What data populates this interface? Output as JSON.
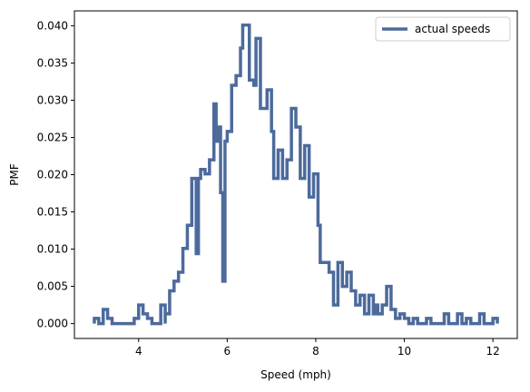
{
  "chart_data": {
    "type": "line",
    "step": true,
    "title": "",
    "xlabel": "Speed (mph)",
    "ylabel": "PMF",
    "xlim": [
      2.55,
      12.55
    ],
    "ylim": [
      -0.002,
      0.042
    ],
    "x_ticks": [
      4,
      6,
      8,
      10,
      12
    ],
    "y_ticks": [
      0.0,
      0.005,
      0.01,
      0.015,
      0.02,
      0.025,
      0.03,
      0.035,
      0.04
    ],
    "x_tick_labels": [
      "4",
      "6",
      "8",
      "10",
      "12"
    ],
    "y_tick_labels": [
      "0.000",
      "0.005",
      "0.010",
      "0.015",
      "0.020",
      "0.025",
      "0.030",
      "0.035",
      "0.040"
    ],
    "grid": false,
    "legend": {
      "placement": "top-right",
      "entries": [
        "actual speeds"
      ]
    },
    "series": [
      {
        "name": "actual speeds",
        "color": "#4c6a9c",
        "points": [
          [
            3.0,
            0.0
          ],
          [
            3.0,
            0.0007
          ],
          [
            3.1,
            0.0007
          ],
          [
            3.1,
            0.0
          ],
          [
            3.2,
            0.0
          ],
          [
            3.2,
            0.0019
          ],
          [
            3.3,
            0.0019
          ],
          [
            3.3,
            0.0007
          ],
          [
            3.4,
            0.0007
          ],
          [
            3.4,
            0.0
          ],
          [
            3.9,
            0.0
          ],
          [
            3.9,
            0.0007
          ],
          [
            4.0,
            0.0007
          ],
          [
            4.0,
            0.0025
          ],
          [
            4.1,
            0.0025
          ],
          [
            4.1,
            0.0013
          ],
          [
            4.2,
            0.0013
          ],
          [
            4.2,
            0.0007
          ],
          [
            4.3,
            0.0007
          ],
          [
            4.3,
            0.0
          ],
          [
            4.5,
            0.0
          ],
          [
            4.5,
            0.0025
          ],
          [
            4.6,
            0.0025
          ],
          [
            4.6,
            0.0
          ],
          [
            4.6,
            0.0013
          ],
          [
            4.7,
            0.0013
          ],
          [
            4.7,
            0.0044
          ],
          [
            4.8,
            0.0044
          ],
          [
            4.8,
            0.0057
          ],
          [
            4.9,
            0.0057
          ],
          [
            4.9,
            0.0069
          ],
          [
            5.0,
            0.0069
          ],
          [
            5.0,
            0.0101
          ],
          [
            5.1,
            0.0101
          ],
          [
            5.1,
            0.0132
          ],
          [
            5.2,
            0.0132
          ],
          [
            5.2,
            0.0195
          ],
          [
            5.3,
            0.0195
          ],
          [
            5.3,
            0.0094
          ],
          [
            5.35,
            0.0094
          ],
          [
            5.35,
            0.0195
          ],
          [
            5.4,
            0.0195
          ],
          [
            5.4,
            0.0207
          ],
          [
            5.5,
            0.0207
          ],
          [
            5.5,
            0.0201
          ],
          [
            5.6,
            0.0201
          ],
          [
            5.6,
            0.022
          ],
          [
            5.7,
            0.022
          ],
          [
            5.7,
            0.0295
          ],
          [
            5.75,
            0.0295
          ],
          [
            5.75,
            0.0245
          ],
          [
            5.8,
            0.0245
          ],
          [
            5.8,
            0.0264
          ],
          [
            5.85,
            0.0264
          ],
          [
            5.85,
            0.0176
          ],
          [
            5.9,
            0.0176
          ],
          [
            5.9,
            0.0057
          ],
          [
            5.95,
            0.0057
          ],
          [
            5.95,
            0.0245
          ],
          [
            6.0,
            0.0245
          ],
          [
            6.0,
            0.0258
          ],
          [
            6.1,
            0.0258
          ],
          [
            6.1,
            0.032
          ],
          [
            6.2,
            0.032
          ],
          [
            6.2,
            0.0333
          ],
          [
            6.3,
            0.0333
          ],
          [
            6.3,
            0.037
          ],
          [
            6.35,
            0.037
          ],
          [
            6.35,
            0.0401
          ],
          [
            6.5,
            0.0401
          ],
          [
            6.5,
            0.0327
          ],
          [
            6.6,
            0.0327
          ],
          [
            6.6,
            0.032
          ],
          [
            6.65,
            0.032
          ],
          [
            6.65,
            0.0383
          ],
          [
            6.75,
            0.0383
          ],
          [
            6.75,
            0.0289
          ],
          [
            6.9,
            0.0289
          ],
          [
            6.9,
            0.0314
          ],
          [
            7.0,
            0.0314
          ],
          [
            7.0,
            0.0258
          ],
          [
            7.05,
            0.0258
          ],
          [
            7.05,
            0.0195
          ],
          [
            7.15,
            0.0195
          ],
          [
            7.15,
            0.0233
          ],
          [
            7.25,
            0.0233
          ],
          [
            7.25,
            0.0195
          ],
          [
            7.35,
            0.0195
          ],
          [
            7.35,
            0.022
          ],
          [
            7.45,
            0.022
          ],
          [
            7.45,
            0.0289
          ],
          [
            7.55,
            0.0289
          ],
          [
            7.55,
            0.0264
          ],
          [
            7.65,
            0.0264
          ],
          [
            7.65,
            0.0195
          ],
          [
            7.75,
            0.0195
          ],
          [
            7.75,
            0.0239
          ],
          [
            7.85,
            0.0239
          ],
          [
            7.85,
            0.017
          ],
          [
            7.95,
            0.017
          ],
          [
            7.95,
            0.0201
          ],
          [
            8.05,
            0.0201
          ],
          [
            8.05,
            0.0132
          ],
          [
            8.1,
            0.0132
          ],
          [
            8.1,
            0.0082
          ],
          [
            8.2,
            0.0082
          ],
          [
            8.2,
            0.0082
          ],
          [
            8.3,
            0.0082
          ],
          [
            8.3,
            0.0069
          ],
          [
            8.4,
            0.0069
          ],
          [
            8.4,
            0.0025
          ],
          [
            8.5,
            0.0025
          ],
          [
            8.5,
            0.0082
          ],
          [
            8.6,
            0.0082
          ],
          [
            8.6,
            0.005
          ],
          [
            8.7,
            0.005
          ],
          [
            8.7,
            0.0069
          ],
          [
            8.8,
            0.0069
          ],
          [
            8.8,
            0.0044
          ],
          [
            8.9,
            0.0044
          ],
          [
            8.9,
            0.0025
          ],
          [
            9.0,
            0.0025
          ],
          [
            9.0,
            0.0038
          ],
          [
            9.1,
            0.0038
          ],
          [
            9.1,
            0.0013
          ],
          [
            9.2,
            0.0013
          ],
          [
            9.2,
            0.0038
          ],
          [
            9.3,
            0.0038
          ],
          [
            9.3,
            0.0013
          ],
          [
            9.35,
            0.0013
          ],
          [
            9.35,
            0.0025
          ],
          [
            9.4,
            0.0025
          ],
          [
            9.4,
            0.0013
          ],
          [
            9.5,
            0.0013
          ],
          [
            9.5,
            0.0025
          ],
          [
            9.6,
            0.0025
          ],
          [
            9.6,
            0.005
          ],
          [
            9.7,
            0.005
          ],
          [
            9.7,
            0.0019
          ],
          [
            9.8,
            0.0019
          ],
          [
            9.8,
            0.0007
          ],
          [
            9.9,
            0.0007
          ],
          [
            9.9,
            0.0013
          ],
          [
            10.0,
            0.0013
          ],
          [
            10.0,
            0.0007
          ],
          [
            10.1,
            0.0007
          ],
          [
            10.1,
            0.0
          ],
          [
            10.2,
            0.0
          ],
          [
            10.2,
            0.0007
          ],
          [
            10.3,
            0.0007
          ],
          [
            10.3,
            0.0
          ],
          [
            10.5,
            0.0
          ],
          [
            10.5,
            0.0007
          ],
          [
            10.6,
            0.0007
          ],
          [
            10.6,
            0.0
          ],
          [
            10.9,
            0.0
          ],
          [
            10.9,
            0.0013
          ],
          [
            11.0,
            0.0013
          ],
          [
            11.0,
            0.0
          ],
          [
            11.2,
            0.0
          ],
          [
            11.2,
            0.0013
          ],
          [
            11.3,
            0.0013
          ],
          [
            11.3,
            0.0
          ],
          [
            11.4,
            0.0
          ],
          [
            11.4,
            0.0007
          ],
          [
            11.5,
            0.0007
          ],
          [
            11.5,
            0.0
          ],
          [
            11.7,
            0.0
          ],
          [
            11.7,
            0.0013
          ],
          [
            11.8,
            0.0013
          ],
          [
            11.8,
            0.0
          ],
          [
            12.0,
            0.0
          ],
          [
            12.0,
            0.0007
          ],
          [
            12.1,
            0.0007
          ],
          [
            12.1,
            0.0
          ]
        ]
      }
    ]
  }
}
